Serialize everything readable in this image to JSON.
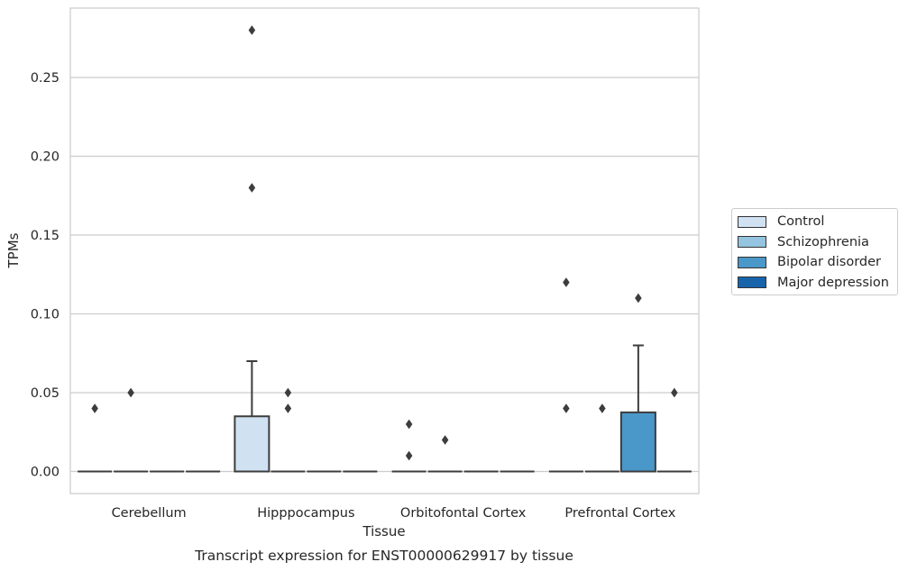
{
  "chart_data": {
    "type": "box",
    "title": "",
    "caption": "Transcript expression for ENST00000629917 by tissue",
    "xlabel": "Tissue",
    "ylabel": "TPMs",
    "ylim": [
      -0.013,
      0.295
    ],
    "yticks": [
      0.0,
      0.05,
      0.1,
      0.15,
      0.2,
      0.25
    ],
    "ytick_labels": [
      "0.00",
      "0.05",
      "0.10",
      "0.15",
      "0.20",
      "0.25"
    ],
    "grid": "horizontal",
    "legend_position": "right",
    "categories": [
      "Cerebellum",
      "Hipppocampus",
      "Orbitofontal Cortex",
      "Prefrontal Cortex"
    ],
    "series": [
      {
        "name": "Control",
        "color": "#d0e1f2",
        "boxes": [
          {
            "q1": 0,
            "median": 0,
            "q3": 0,
            "whislo": 0,
            "whishi": 0,
            "fliers": [
              0.04
            ]
          },
          {
            "q1": 0,
            "median": 0,
            "q3": 0.035,
            "whislo": 0,
            "whishi": 0.07,
            "fliers": [
              0.18,
              0.28
            ]
          },
          {
            "q1": 0,
            "median": 0,
            "q3": 0,
            "whislo": 0,
            "whishi": 0,
            "fliers": [
              0.01,
              0.03
            ]
          },
          {
            "q1": 0,
            "median": 0,
            "q3": 0,
            "whislo": 0,
            "whishi": 0,
            "fliers": [
              0.04,
              0.12
            ]
          }
        ]
      },
      {
        "name": "Schizophrenia",
        "color": "#94c4df",
        "boxes": [
          {
            "q1": 0,
            "median": 0,
            "q3": 0,
            "whislo": 0,
            "whishi": 0,
            "fliers": [
              0.05
            ]
          },
          {
            "q1": 0,
            "median": 0,
            "q3": 0,
            "whislo": 0,
            "whishi": 0,
            "fliers": [
              0.04,
              0.05
            ]
          },
          {
            "q1": 0,
            "median": 0,
            "q3": 0,
            "whislo": 0,
            "whishi": 0,
            "fliers": [
              0.02
            ]
          },
          {
            "q1": 0,
            "median": 0,
            "q3": 0,
            "whislo": 0,
            "whishi": 0,
            "fliers": [
              0.04
            ]
          }
        ]
      },
      {
        "name": "Bipolar disorder",
        "color": "#4a98c9",
        "boxes": [
          {
            "q1": 0,
            "median": 0,
            "q3": 0,
            "whislo": 0,
            "whishi": 0,
            "fliers": []
          },
          {
            "q1": 0,
            "median": 0,
            "q3": 0,
            "whislo": 0,
            "whishi": 0,
            "fliers": []
          },
          {
            "q1": 0,
            "median": 0,
            "q3": 0,
            "whislo": 0,
            "whishi": 0,
            "fliers": []
          },
          {
            "q1": 0,
            "median": 0,
            "q3": 0.0375,
            "whislo": 0,
            "whishi": 0.08,
            "fliers": [
              0.11
            ]
          }
        ]
      },
      {
        "name": "Major depression",
        "color": "#1764ab",
        "boxes": [
          {
            "q1": 0,
            "median": 0,
            "q3": 0,
            "whislo": 0,
            "whishi": 0,
            "fliers": []
          },
          {
            "q1": 0,
            "median": 0,
            "q3": 0,
            "whislo": 0,
            "whishi": 0,
            "fliers": []
          },
          {
            "q1": 0,
            "median": 0,
            "q3": 0,
            "whislo": 0,
            "whishi": 0,
            "fliers": []
          },
          {
            "q1": 0,
            "median": 0,
            "q3": 0,
            "whislo": 0,
            "whishi": 0,
            "fliers": [
              0.05
            ]
          }
        ]
      }
    ]
  }
}
